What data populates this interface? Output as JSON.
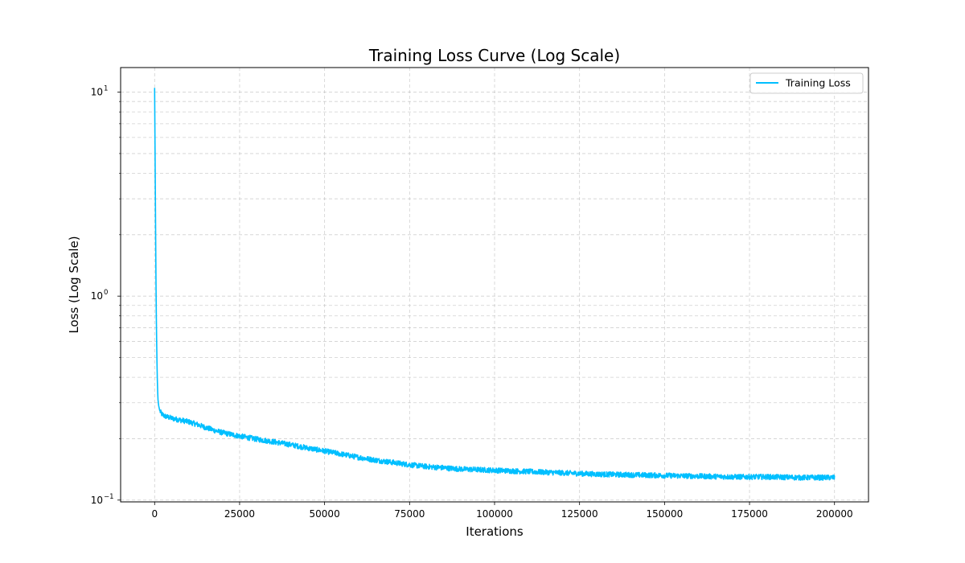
{
  "chart_data": {
    "type": "line",
    "title": "Training Loss Curve (Log Scale)",
    "xlabel": "Iterations",
    "ylabel": "Loss (Log Scale)",
    "xlim": [
      -10000,
      210000
    ],
    "ylim": [
      0.098,
      13.2
    ],
    "yscale": "log",
    "grid": true,
    "legend_position": "top-right",
    "x_ticks": [
      "0",
      "25000",
      "50000",
      "75000",
      "100000",
      "125000",
      "150000",
      "175000",
      "200000"
    ],
    "y_major_ticks": [
      {
        "base": "10",
        "exp": "1",
        "value": 10
      },
      {
        "base": "10",
        "exp": "0",
        "value": 1
      },
      {
        "base": "10",
        "exp": "−1",
        "value": 0.1
      }
    ],
    "series": [
      {
        "name": "Training Loss",
        "color": "#00bfff",
        "x": [
          0,
          100,
          200,
          300,
          400,
          500,
          600,
          700,
          800,
          900,
          1000,
          1200,
          1500,
          2000,
          3000,
          5000,
          7500,
          10000,
          12500,
          15000,
          17500,
          20000,
          25000,
          30000,
          35000,
          40000,
          45000,
          50000,
          55000,
          60000,
          65000,
          70000,
          75000,
          80000,
          85000,
          90000,
          95000,
          100000,
          110000,
          120000,
          130000,
          140000,
          150000,
          160000,
          170000,
          180000,
          190000,
          200000
        ],
        "y": [
          10.5,
          6.0,
          3.5,
          2.0,
          1.2,
          0.8,
          0.6,
          0.47,
          0.39,
          0.34,
          0.31,
          0.29,
          0.275,
          0.265,
          0.258,
          0.252,
          0.247,
          0.242,
          0.235,
          0.227,
          0.22,
          0.214,
          0.206,
          0.199,
          0.193,
          0.187,
          0.18,
          0.174,
          0.168,
          0.162,
          0.157,
          0.153,
          0.149,
          0.146,
          0.144,
          0.142,
          0.141,
          0.14,
          0.138,
          0.136,
          0.134,
          0.133,
          0.132,
          0.131,
          0.13,
          0.13,
          0.129,
          0.129
        ]
      }
    ]
  }
}
